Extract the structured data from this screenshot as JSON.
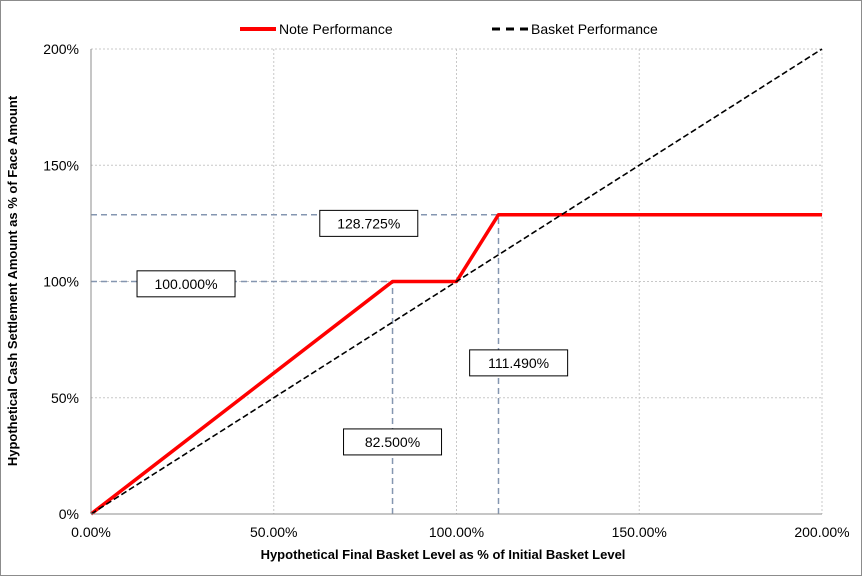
{
  "chart_data": {
    "type": "line",
    "xlabel": "Hypothetical Final Basket Level as % of Initial Basket Level",
    "ylabel": "Hypothetical Cash Settlement Amount as % of Face Amount",
    "xlim": [
      0,
      200
    ],
    "ylim": [
      0,
      200
    ],
    "x_ticks": [
      0,
      50,
      100,
      150,
      200
    ],
    "x_tick_labels": [
      "0.00%",
      "50.00%",
      "100.00%",
      "150.00%",
      "200.00%"
    ],
    "y_ticks": [
      0,
      50,
      100,
      150,
      200
    ],
    "y_tick_labels": [
      "0%",
      "50%",
      "100%",
      "150%",
      "200%"
    ],
    "grid": true,
    "legend_position": "top-center",
    "series": [
      {
        "name": "Note Performance",
        "color": "#ff0000",
        "style": "solid",
        "x": [
          0,
          82.5,
          100,
          111.49,
          200
        ],
        "y": [
          0,
          100,
          100,
          128.725,
          128.725
        ]
      },
      {
        "name": "Basket Performance",
        "color": "#000000",
        "style": "dashed",
        "x": [
          0,
          200
        ],
        "y": [
          0,
          200
        ]
      }
    ],
    "reference_lines": [
      {
        "orientation": "horizontal",
        "value": 128.725,
        "x_range": [
          0,
          111.49
        ]
      },
      {
        "orientation": "horizontal",
        "value": 100,
        "x_range": [
          0,
          82.5
        ]
      },
      {
        "orientation": "vertical",
        "value": 82.5,
        "y_range": [
          0,
          100
        ]
      },
      {
        "orientation": "vertical",
        "value": 111.49,
        "y_range": [
          0,
          128.725
        ]
      }
    ],
    "annotations": [
      {
        "text": "128.725%",
        "x": 76,
        "y": 125
      },
      {
        "text": "100.000%",
        "x": 26,
        "y": 99
      },
      {
        "text": "111.490%",
        "x": 117,
        "y": 65
      },
      {
        "text": "82.500%",
        "x": 82.5,
        "y": 31
      }
    ]
  }
}
